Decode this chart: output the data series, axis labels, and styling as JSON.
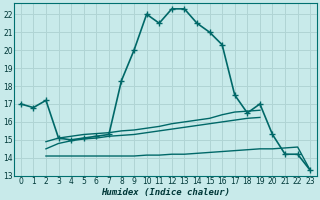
{
  "xlabel": "Humidex (Indice chaleur)",
  "background_color": "#c8eaea",
  "grid_color": "#b0d4d4",
  "line_color": "#006868",
  "xlim": [
    -0.5,
    23.5
  ],
  "ylim": [
    13,
    22.6
  ],
  "yticks": [
    13,
    14,
    15,
    16,
    17,
    18,
    19,
    20,
    21,
    22
  ],
  "xticks": [
    0,
    1,
    2,
    3,
    4,
    5,
    6,
    7,
    8,
    9,
    10,
    11,
    12,
    13,
    14,
    15,
    16,
    17,
    18,
    19,
    20,
    21,
    22,
    23
  ],
  "main_x": [
    0,
    1,
    2,
    3,
    4,
    5,
    6,
    7,
    8,
    9,
    10,
    11,
    12,
    13,
    14,
    15,
    16,
    17,
    18,
    19,
    20,
    21,
    22,
    23
  ],
  "main_y": [
    17.0,
    16.8,
    17.2,
    15.1,
    15.0,
    15.1,
    15.2,
    15.3,
    18.3,
    20.0,
    22.0,
    21.5,
    22.3,
    22.3,
    21.5,
    21.0,
    20.3,
    17.5,
    16.5,
    17.0,
    15.3,
    14.2,
    14.2,
    13.3
  ],
  "line1_x": [
    2,
    3,
    4,
    5,
    6,
    7,
    8,
    9,
    10,
    11,
    12,
    13,
    14,
    15,
    16,
    17,
    18,
    19
  ],
  "line1_y": [
    14.9,
    15.1,
    15.2,
    15.3,
    15.35,
    15.4,
    15.5,
    15.55,
    15.65,
    15.75,
    15.9,
    16.0,
    16.1,
    16.2,
    16.4,
    16.55,
    16.6,
    16.65
  ],
  "line2_x": [
    2,
    3,
    4,
    5,
    6,
    7,
    8,
    9,
    10,
    11,
    12,
    13,
    14,
    15,
    16,
    17,
    18,
    19
  ],
  "line2_y": [
    14.5,
    14.8,
    14.95,
    15.05,
    15.1,
    15.2,
    15.25,
    15.3,
    15.4,
    15.5,
    15.6,
    15.7,
    15.8,
    15.9,
    16.0,
    16.1,
    16.2,
    16.25
  ],
  "line3_x": [
    2,
    3,
    4,
    5,
    6,
    7,
    8,
    9,
    10,
    11,
    12,
    13,
    14,
    15,
    16,
    17,
    18,
    19,
    20,
    21,
    22,
    23
  ],
  "line3_y": [
    14.1,
    14.1,
    14.1,
    14.1,
    14.1,
    14.1,
    14.1,
    14.1,
    14.15,
    14.15,
    14.2,
    14.2,
    14.25,
    14.3,
    14.35,
    14.4,
    14.45,
    14.5,
    14.5,
    14.55,
    14.6,
    13.3
  ]
}
